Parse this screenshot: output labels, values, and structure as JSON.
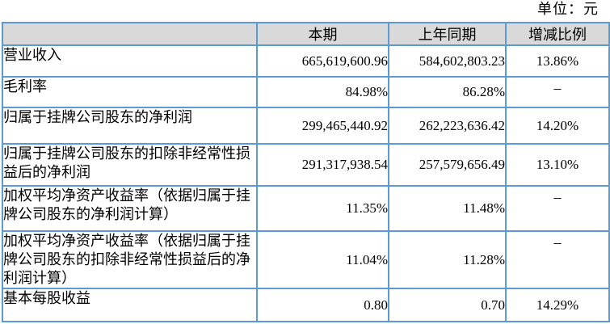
{
  "unit_label": "单位：元",
  "table": {
    "columns": [
      "",
      "本期",
      "上年同期",
      "增减比例"
    ],
    "rows": [
      {
        "label": "营业收入",
        "current": "665,619,600.96",
        "prior": "584,602,803.23",
        "change": "13.86%"
      },
      {
        "label": "毛利率",
        "current": "84.98%",
        "prior": "86.28%",
        "change": "–"
      },
      {
        "label": "归属于挂牌公司股东的净利润",
        "current": "299,465,440.92",
        "prior": "262,223,636.42",
        "change": "14.20%"
      },
      {
        "label": "归属于挂牌公司股东的扣除非经常性损益后的净利润",
        "current": "291,317,938.54",
        "prior": "257,579,656.49",
        "change": "13.10%"
      },
      {
        "label": "加权平均净资产收益率（依据归属于挂牌公司股东的净利润计算）",
        "current": "11.35%",
        "prior": "11.48%",
        "change": "–"
      },
      {
        "label": "加权平均净资产收益率（依据归属于挂牌公司股东的扣除非经常性损益后的净利润计算）",
        "current": "11.04%",
        "prior": "11.28%",
        "change": "–"
      },
      {
        "label": "基本每股收益",
        "current": "0.80",
        "prior": "0.70",
        "change": "14.29%"
      }
    ]
  },
  "colors": {
    "border": "#5B9BD5",
    "header_bg": "#D9D9D9",
    "text": "#000000",
    "background": "#FFFFFF"
  }
}
